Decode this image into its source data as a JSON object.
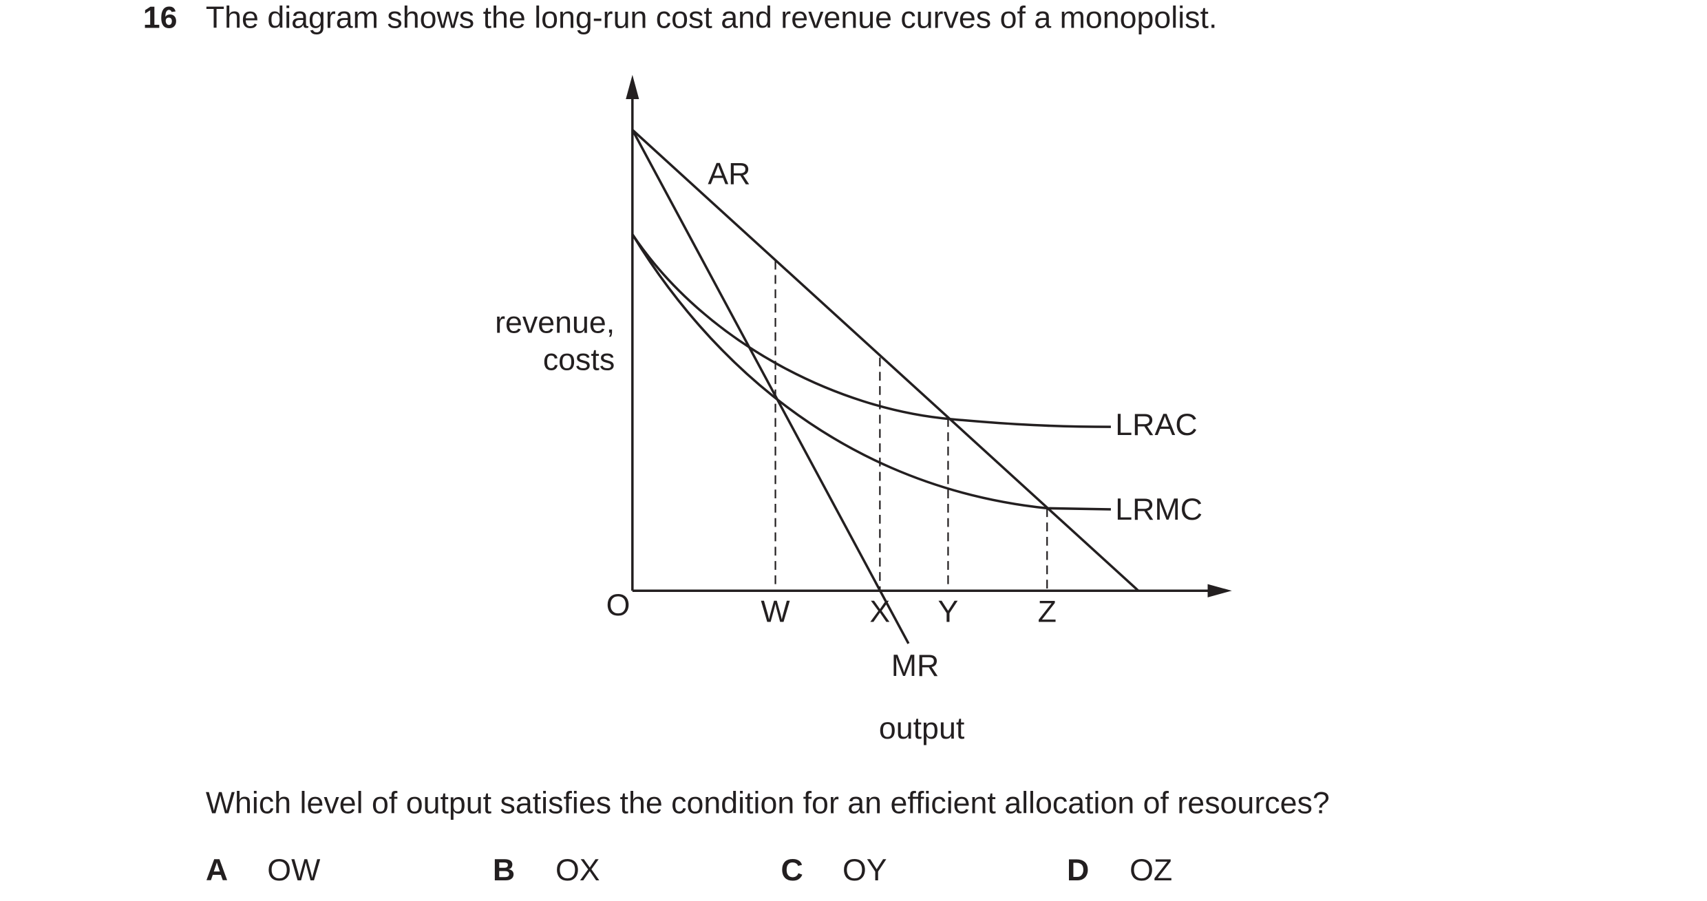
{
  "question": {
    "number": "16",
    "text": "The diagram shows the long-run cost and revenue curves of a monopolist."
  },
  "diagram": {
    "y_axis_label_line1": "revenue,",
    "y_axis_label_line2": "costs",
    "x_axis_label": "output",
    "origin": "O",
    "curves": {
      "ar": "AR",
      "mr": "MR",
      "lrac": "LRAC",
      "lrmc": "LRMC"
    },
    "points": [
      "W",
      "X",
      "Y",
      "Z"
    ]
  },
  "prompt": "Which level of output satisfies the condition for an efficient allocation of resources?",
  "options": [
    {
      "letter": "A",
      "text": "OW"
    },
    {
      "letter": "B",
      "text": "OX"
    },
    {
      "letter": "C",
      "text": "OY"
    },
    {
      "letter": "D",
      "text": "OZ"
    }
  ]
}
